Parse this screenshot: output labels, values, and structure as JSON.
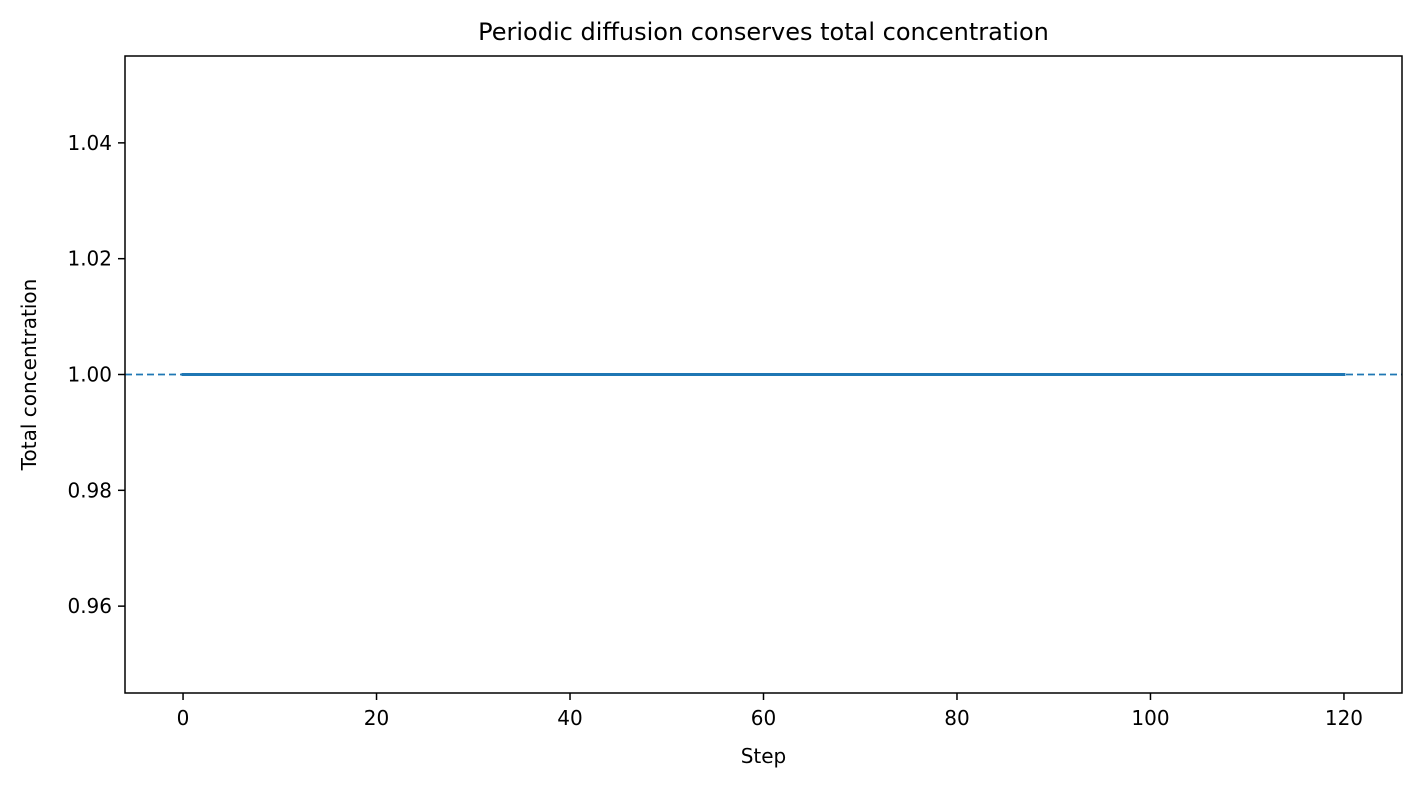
{
  "chart_data": {
    "type": "line",
    "title": "Periodic diffusion conserves total concentration",
    "xlabel": "Step",
    "ylabel": "Total concentration",
    "xlim": [
      -6,
      126
    ],
    "ylim": [
      0.945,
      1.055
    ],
    "xticks": [
      0,
      20,
      40,
      60,
      80,
      100,
      120
    ],
    "xtick_labels": [
      "0",
      "20",
      "40",
      "60",
      "80",
      "100",
      "120"
    ],
    "yticks": [
      0.96,
      0.98,
      1.0,
      1.02,
      1.04
    ],
    "ytick_labels": [
      "0.96",
      "0.98",
      "1.00",
      "1.02",
      "1.04"
    ],
    "grid": false,
    "legend": "none",
    "series": [
      {
        "x": [
          0,
          120
        ],
        "y": [
          1.0,
          1.0
        ],
        "color": "#1f77b4",
        "style": "solid"
      }
    ],
    "reference_lines": [
      {
        "orientation": "horizontal",
        "y": 1.0,
        "color": "#1f77b4",
        "style": "dashed"
      }
    ]
  }
}
